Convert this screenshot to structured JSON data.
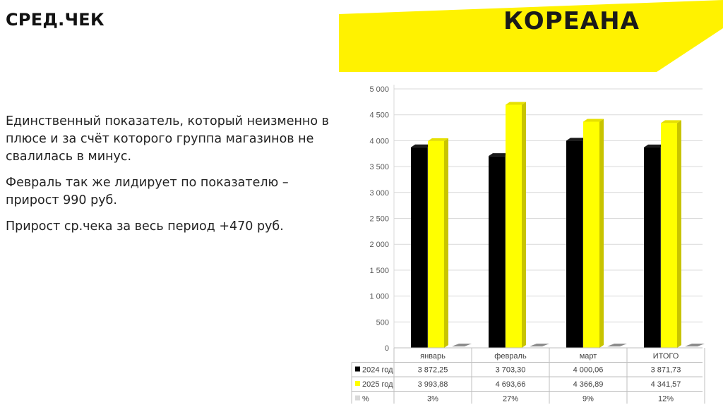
{
  "header": {
    "title": "СРЕД.ЧЕК",
    "logo_text": "КОРЕАНА",
    "banner_color": "#fff200"
  },
  "body_text": {
    "p1": "Единственный показатель, который неизменно в плюсе и за счёт которого группа магазинов не свалилась в минус.",
    "p2": "Февраль так же лидирует по показателю – прирост 990 руб.",
    "p3": "Прирост ср.чека за весь период +470 руб."
  },
  "chart_data": {
    "type": "bar",
    "categories": [
      "январь",
      "февраль",
      "март",
      "ИТОГО"
    ],
    "series": [
      {
        "name": "2024 год",
        "values": [
          3872.25,
          3703.3,
          4000.06,
          3871.73
        ],
        "labels": [
          "3 872,25",
          "3 703,30",
          "4 000,06",
          "3 871,73"
        ],
        "color": "#000000"
      },
      {
        "name": "2025 год",
        "values": [
          3993.88,
          4693.66,
          4366.89,
          4341.57
        ],
        "labels": [
          "3 993,88",
          "4 693,66",
          "4 366,89",
          "4 341,57"
        ],
        "color": "#ffff00"
      },
      {
        "name": "%",
        "values": [
          3,
          27,
          9,
          12
        ],
        "labels": [
          "3%",
          "27%",
          "9%",
          "12%"
        ],
        "color": "#d9d9d9"
      }
    ],
    "yticks": [
      "0",
      "500",
      "1 000",
      "1 500",
      "2 000",
      "2 500",
      "3 000",
      "3 500",
      "4 000",
      "4 500",
      "5 000"
    ],
    "ylim": [
      0,
      5000
    ],
    "grid": true,
    "legend": "data-table"
  }
}
